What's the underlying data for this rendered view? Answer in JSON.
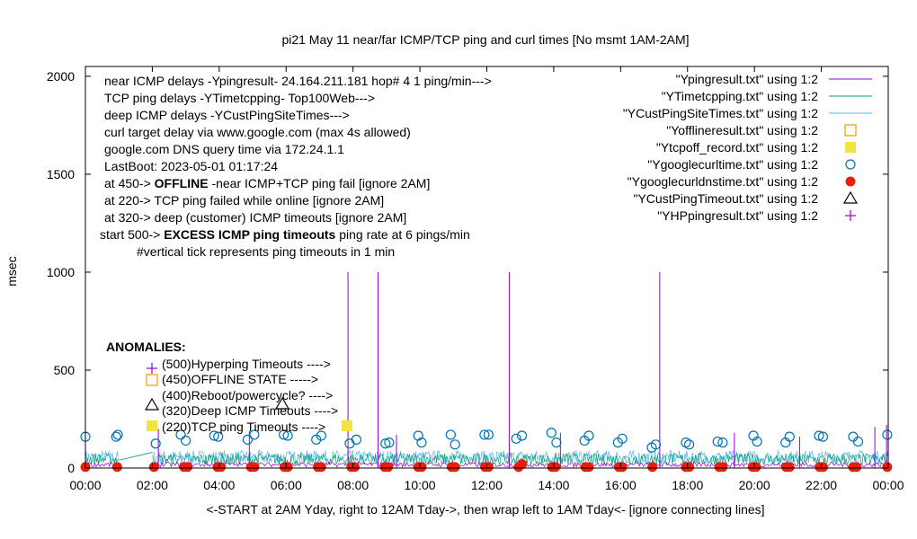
{
  "chart_data": {
    "type": "scatter",
    "title": "pi21 May 11  near/far ICMP/TCP ping and curl times [No msmt 1AM-2AM]",
    "xlabel": "<-START at 2AM Yday, right to 12AM Tday->, then wrap left to 1AM Tday<- [ignore connecting lines]",
    "ylabel": "msec",
    "xlim": [
      0,
      24
    ],
    "ylim": [
      0,
      2050
    ],
    "x_tick_labels": [
      "00:00",
      "02:00",
      "04:00",
      "06:00",
      "08:00",
      "10:00",
      "12:00",
      "14:00",
      "16:00",
      "18:00",
      "20:00",
      "22:00",
      "00:00"
    ],
    "y_ticks": [
      0,
      500,
      1000,
      1500,
      2000
    ],
    "grid": false,
    "legend_position": "top-right",
    "info_lines": [
      "near ICMP delays -Ypingresult- 24.164.211.181 hop# 4 1 ping/min--->",
      "TCP ping delays -YTimetcpping- Top100Web--->",
      "deep ICMP delays -YCustPingSiteTimes--->",
      "curl target delay via www.google.com (max 4s allowed)",
      "google.com DNS query time via 172.24.1.1",
      "LastBoot: 2023-05-01 01:17:24"
    ],
    "status_lines": [
      {
        "prefix": "at 450->",
        "bold": "OFFLINE",
        "rest": "-near ICMP+TCP ping fail [ignore 2AM]"
      },
      {
        "prefix": "at 220-> TCP ping failed while online [ignore 2AM]",
        "bold": "",
        "rest": ""
      },
      {
        "prefix": "at 320-> deep (customer) ICMP timeouts [ignore 2AM]",
        "bold": "",
        "rest": ""
      },
      {
        "prefix": "start 500->",
        "bold": "EXCESS ICMP ping timeouts",
        "rest": "ping rate at 6 pings/min"
      }
    ],
    "tick_note": "#vertical tick represents ping timeouts in 1 min",
    "anomalies": {
      "title": "ANOMALIES:",
      "items": [
        {
          "label": "(500)Hyperping Timeouts ---->",
          "marker": "plus",
          "color": "#9400d3"
        },
        {
          "label": "(450)OFFLINE STATE ----->",
          "marker": "square",
          "color": "#e69f00"
        },
        {
          "label": "(400)Reboot/powercycle? ---->",
          "marker": "none",
          "color": "#000000"
        },
        {
          "label": "(320)Deep ICMP Timeouts ---->",
          "marker": "triangle",
          "color": "#000000"
        },
        {
          "label": "(220)TCP ping Timeouts ---->",
          "marker": "filledsquare",
          "color": "#f0e442"
        }
      ]
    },
    "series": [
      {
        "name": "\"Ypingresult.txt\" using 1:2",
        "style": "line",
        "color": "#9400d3"
      },
      {
        "name": "\"YTimetcpping.txt\" using 1:2",
        "style": "line",
        "color": "#009e73"
      },
      {
        "name": "\"YCustPingSiteTimes.txt\" using 1:2",
        "style": "line",
        "color": "#56b4e9"
      },
      {
        "name": "\"Yofflineresult.txt\" using 1:2",
        "style": "open-square",
        "color": "#e69f00"
      },
      {
        "name": "\"Ytcpoff_record.txt\" using 1:2",
        "style": "filled-square",
        "color": "#f0e442"
      },
      {
        "name": "\"Ygooglecurltime.txt\" using 1:2",
        "style": "open-circle",
        "color": "#0072b2"
      },
      {
        "name": "\"Ygooglecurldnstime.txt\" using 1:2",
        "style": "filled-circle",
        "color": "#e51e10"
      },
      {
        "name": "\"YCustPingTimeout.txt\" using 1:2",
        "style": "triangle",
        "color": "#000000"
      },
      {
        "name": "\"YHPpingresult.txt\" using 1:2",
        "style": "plus",
        "color": "#9400d3"
      }
    ],
    "ping_spikes": [
      {
        "x": 7.85,
        "y": 1000
      },
      {
        "x": 8.75,
        "y": 1000
      },
      {
        "x": 12.67,
        "y": 1000
      },
      {
        "x": 17.17,
        "y": 1000
      },
      {
        "x": 2.18,
        "y": 200
      },
      {
        "x": 4.9,
        "y": 190
      },
      {
        "x": 9.3,
        "y": 170
      },
      {
        "x": 14.2,
        "y": 180
      },
      {
        "x": 19.4,
        "y": 180
      },
      {
        "x": 21.35,
        "y": 160
      },
      {
        "x": 23.6,
        "y": 210
      },
      {
        "x": 23.95,
        "y": 220
      }
    ],
    "curl_times": [
      {
        "x": 0.0,
        "y": 160
      },
      {
        "x": 0.92,
        "y": 160
      },
      {
        "x": 0.97,
        "y": 170
      },
      {
        "x": 2.1,
        "y": 125
      },
      {
        "x": 2.85,
        "y": 170
      },
      {
        "x": 3.0,
        "y": 140
      },
      {
        "x": 3.85,
        "y": 165
      },
      {
        "x": 3.97,
        "y": 160
      },
      {
        "x": 4.85,
        "y": 145
      },
      {
        "x": 5.05,
        "y": 170
      },
      {
        "x": 5.93,
        "y": 170
      },
      {
        "x": 6.05,
        "y": 165
      },
      {
        "x": 6.9,
        "y": 145
      },
      {
        "x": 7.05,
        "y": 165
      },
      {
        "x": 7.9,
        "y": 125
      },
      {
        "x": 8.1,
        "y": 145
      },
      {
        "x": 8.97,
        "y": 125
      },
      {
        "x": 9.08,
        "y": 130
      },
      {
        "x": 9.95,
        "y": 165
      },
      {
        "x": 10.05,
        "y": 130
      },
      {
        "x": 10.92,
        "y": 170
      },
      {
        "x": 11.05,
        "y": 120
      },
      {
        "x": 11.93,
        "y": 170
      },
      {
        "x": 12.05,
        "y": 170
      },
      {
        "x": 12.88,
        "y": 150
      },
      {
        "x": 13.05,
        "y": 165
      },
      {
        "x": 13.93,
        "y": 180
      },
      {
        "x": 14.08,
        "y": 130
      },
      {
        "x": 14.92,
        "y": 140
      },
      {
        "x": 15.05,
        "y": 165
      },
      {
        "x": 15.92,
        "y": 130
      },
      {
        "x": 16.05,
        "y": 150
      },
      {
        "x": 16.93,
        "y": 105
      },
      {
        "x": 17.05,
        "y": 120
      },
      {
        "x": 17.95,
        "y": 130
      },
      {
        "x": 18.05,
        "y": 120
      },
      {
        "x": 18.9,
        "y": 135
      },
      {
        "x": 19.05,
        "y": 130
      },
      {
        "x": 19.97,
        "y": 165
      },
      {
        "x": 20.08,
        "y": 135
      },
      {
        "x": 20.93,
        "y": 130
      },
      {
        "x": 21.05,
        "y": 160
      },
      {
        "x": 21.93,
        "y": 165
      },
      {
        "x": 22.05,
        "y": 160
      },
      {
        "x": 22.95,
        "y": 160
      },
      {
        "x": 23.1,
        "y": 135
      },
      {
        "x": 23.97,
        "y": 170
      }
    ],
    "dns_times": [
      {
        "x": 0.0,
        "y": 5
      },
      {
        "x": 0.95,
        "y": 5
      },
      {
        "x": 2.05,
        "y": 5
      },
      {
        "x": 2.95,
        "y": 5
      },
      {
        "x": 3.05,
        "y": 5
      },
      {
        "x": 3.95,
        "y": 5
      },
      {
        "x": 4.05,
        "y": 5
      },
      {
        "x": 4.95,
        "y": 5
      },
      {
        "x": 5.05,
        "y": 5
      },
      {
        "x": 5.95,
        "y": 5
      },
      {
        "x": 6.05,
        "y": 5
      },
      {
        "x": 6.95,
        "y": 5
      },
      {
        "x": 7.05,
        "y": 5
      },
      {
        "x": 7.95,
        "y": 5
      },
      {
        "x": 8.05,
        "y": 5
      },
      {
        "x": 8.95,
        "y": 5
      },
      {
        "x": 9.05,
        "y": 5
      },
      {
        "x": 9.95,
        "y": 5
      },
      {
        "x": 10.05,
        "y": 5
      },
      {
        "x": 10.95,
        "y": 5
      },
      {
        "x": 11.05,
        "y": 5
      },
      {
        "x": 11.95,
        "y": 5
      },
      {
        "x": 12.05,
        "y": 5
      },
      {
        "x": 12.95,
        "y": 5
      },
      {
        "x": 13.05,
        "y": 20
      },
      {
        "x": 13.95,
        "y": 5
      },
      {
        "x": 14.05,
        "y": 5
      },
      {
        "x": 14.95,
        "y": 5
      },
      {
        "x": 15.05,
        "y": 5
      },
      {
        "x": 15.95,
        "y": 5
      },
      {
        "x": 16.05,
        "y": 5
      },
      {
        "x": 16.95,
        "y": 5
      },
      {
        "x": 17.95,
        "y": 5
      },
      {
        "x": 18.05,
        "y": 5
      },
      {
        "x": 18.95,
        "y": 5
      },
      {
        "x": 19.05,
        "y": 5
      },
      {
        "x": 19.95,
        "y": 5
      },
      {
        "x": 20.05,
        "y": 5
      },
      {
        "x": 20.95,
        "y": 5
      },
      {
        "x": 21.05,
        "y": 5
      },
      {
        "x": 21.95,
        "y": 5
      },
      {
        "x": 22.05,
        "y": 5
      },
      {
        "x": 22.95,
        "y": 5
      },
      {
        "x": 23.05,
        "y": 5
      },
      {
        "x": 23.97,
        "y": 5
      }
    ]
  }
}
